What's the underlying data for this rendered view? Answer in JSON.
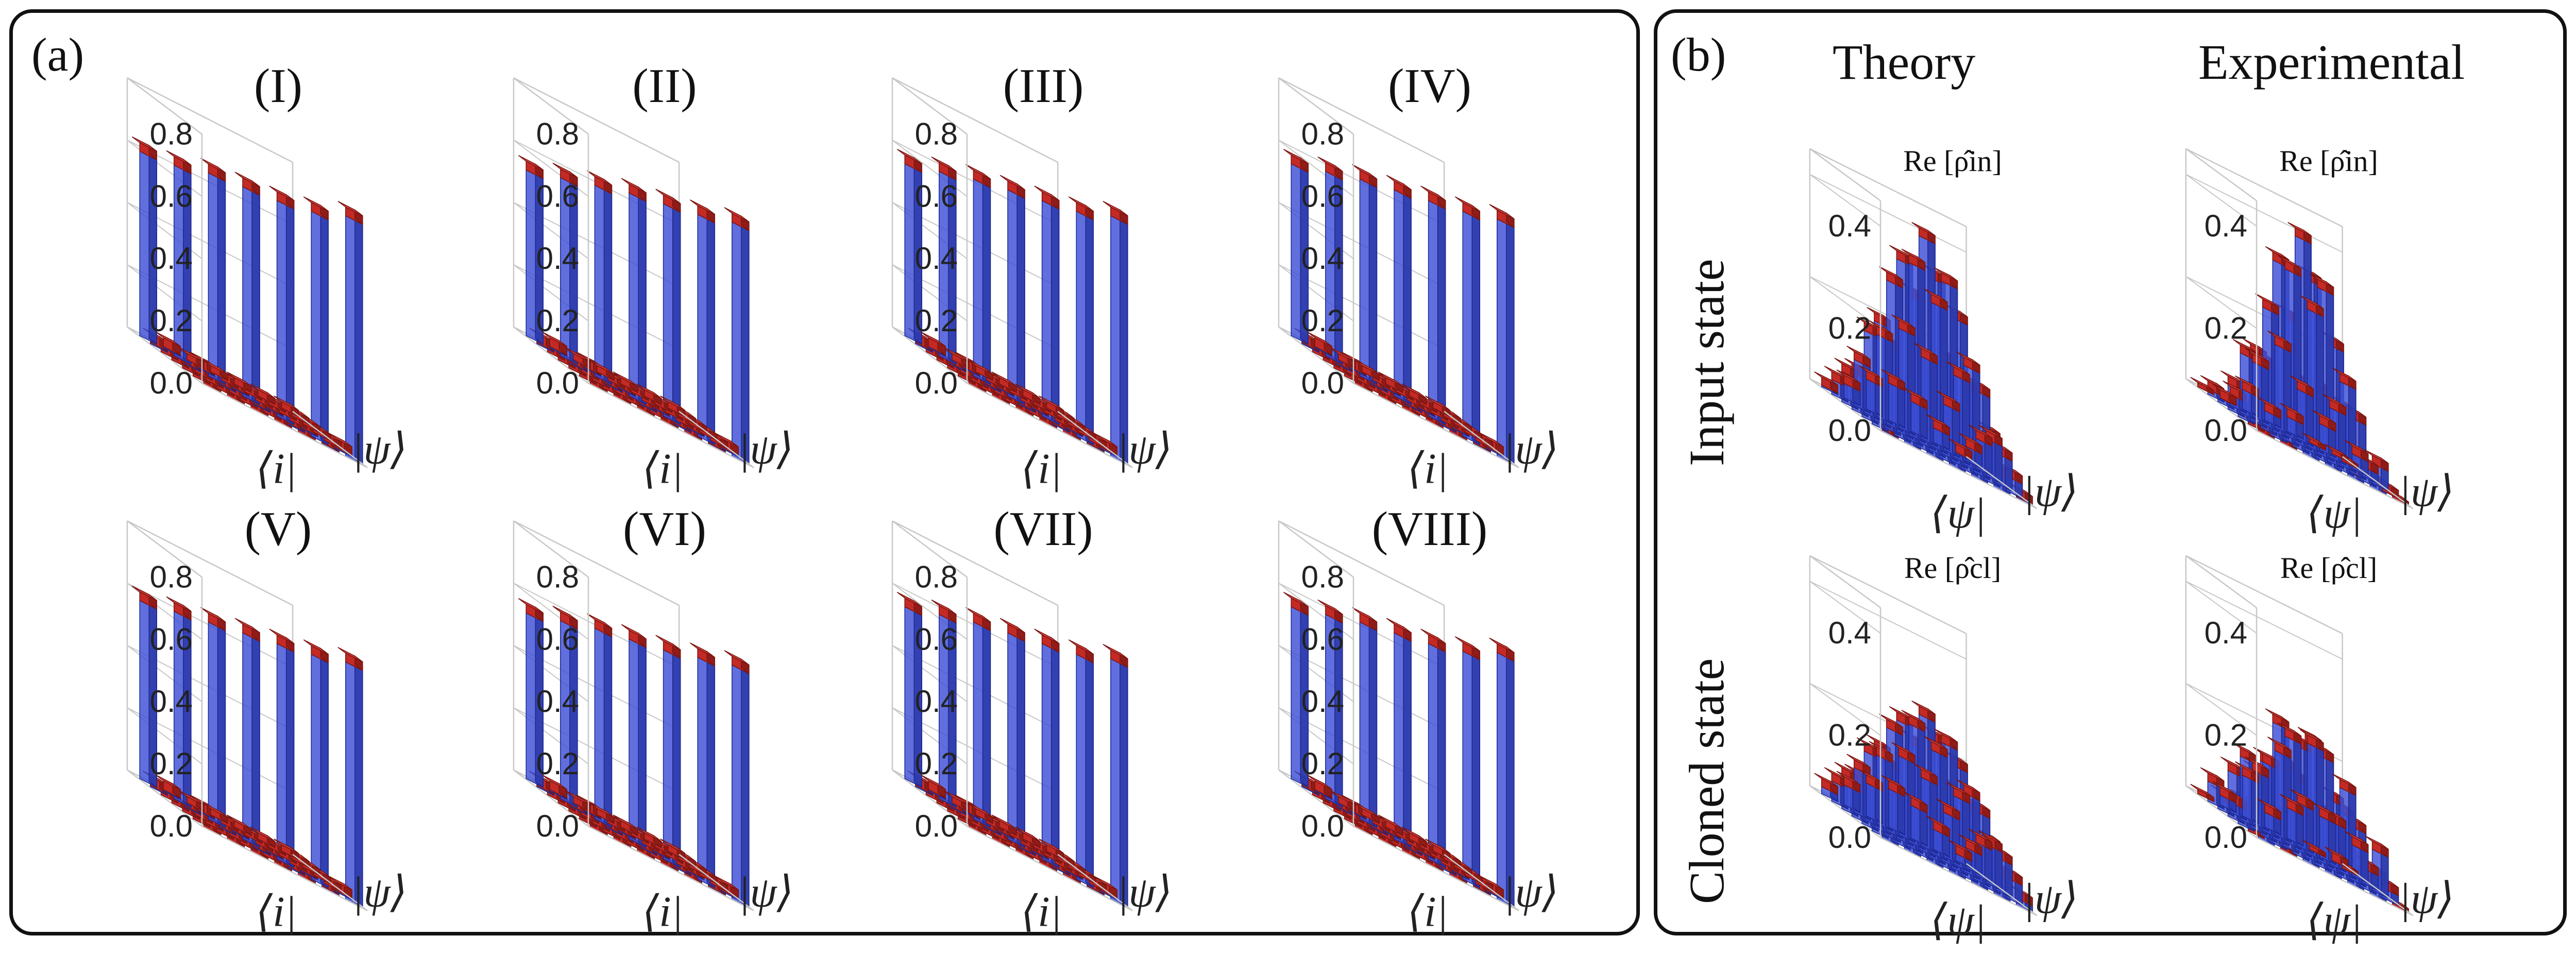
{
  "panel_a": {
    "label": "(a)",
    "plots": [
      {
        "title": "(I)"
      },
      {
        "title": "(II)"
      },
      {
        "title": "(III)"
      },
      {
        "title": "(IV)"
      },
      {
        "title": "(V)"
      },
      {
        "title": "(VI)"
      },
      {
        "title": "(VII)"
      },
      {
        "title": "(VIII)"
      }
    ],
    "x_label": "⟨i|",
    "y_label": "|ψ⟩",
    "z_ticks": [
      "0.0",
      "0.2",
      "0.4",
      "0.6",
      "0.8"
    ]
  },
  "panel_b": {
    "label": "(b)",
    "col_theory": "Theory",
    "col_experimental": "Experimental",
    "row_input": "Input state",
    "row_cloned": "Cloned state",
    "sub_in": "Re [ρ̂in]",
    "sub_cl": "Re [ρ̂cl]",
    "x_label": "⟨ψ|",
    "y_label": "|ψ⟩",
    "z_ticks_input": [
      "0.0",
      "0.2",
      "0.4"
    ],
    "z_ticks_cloned": [
      "0.0",
      "0.2",
      "0.4"
    ]
  },
  "colors": {
    "bar_blue": "#3d4fd6",
    "bar_red": "#c42a25",
    "frame": "#111111",
    "grid": "#c8c8c8"
  },
  "chart_data": [
    {
      "type": "bar3d",
      "panel": "a",
      "title": "(I)",
      "grid_size": 7,
      "diagonal": [
        0.62,
        0.64,
        0.68,
        0.7,
        0.72,
        0.75,
        0.8
      ],
      "offdiag": 0.02,
      "zlim": [
        0,
        0.8
      ]
    },
    {
      "type": "bar3d",
      "panel": "a",
      "title": "(II)",
      "grid_size": 7,
      "diagonal": [
        0.56,
        0.6,
        0.64,
        0.68,
        0.71,
        0.74,
        0.78
      ],
      "offdiag": 0.02,
      "zlim": [
        0,
        0.8
      ]
    },
    {
      "type": "bar3d",
      "panel": "a",
      "title": "(III)",
      "grid_size": 7,
      "diagonal": [
        0.58,
        0.62,
        0.66,
        0.69,
        0.72,
        0.75,
        0.8
      ],
      "offdiag": 0.02,
      "zlim": [
        0,
        0.8
      ]
    },
    {
      "type": "bar3d",
      "panel": "a",
      "title": "(IV)",
      "grid_size": 7,
      "diagonal": [
        0.58,
        0.62,
        0.66,
        0.69,
        0.72,
        0.75,
        0.79
      ],
      "offdiag": 0.02,
      "zlim": [
        0,
        0.8
      ]
    },
    {
      "type": "bar3d",
      "panel": "a",
      "title": "(V)",
      "grid_size": 7,
      "diagonal": [
        0.6,
        0.63,
        0.66,
        0.69,
        0.72,
        0.75,
        0.79
      ],
      "offdiag": 0.02,
      "zlim": [
        0,
        0.8
      ]
    },
    {
      "type": "bar3d",
      "panel": "a",
      "title": "(VI)",
      "grid_size": 7,
      "diagonal": [
        0.56,
        0.6,
        0.64,
        0.67,
        0.7,
        0.74,
        0.78
      ],
      "offdiag": 0.02,
      "zlim": [
        0,
        0.8
      ]
    },
    {
      "type": "bar3d",
      "panel": "a",
      "title": "(VII)",
      "grid_size": 7,
      "diagonal": [
        0.58,
        0.62,
        0.66,
        0.69,
        0.72,
        0.75,
        0.8
      ],
      "offdiag": 0.02,
      "zlim": [
        0,
        0.8
      ]
    },
    {
      "type": "bar3d",
      "panel": "a",
      "title": "(VIII)",
      "grid_size": 7,
      "diagonal": [
        0.58,
        0.62,
        0.66,
        0.69,
        0.72,
        0.76,
        0.82
      ],
      "offdiag": 0.02,
      "zlim": [
        0,
        0.8
      ]
    },
    {
      "type": "bar3d",
      "panel": "b",
      "title": "Theory · Input state · Re [ρ̂in]",
      "grid_size": 7,
      "peak": 0.42,
      "width": 1.7,
      "noise": 0,
      "zlim": [
        0,
        0.45
      ]
    },
    {
      "type": "bar3d",
      "panel": "b",
      "title": "Experimental · Input state · Re [ρ̂in]",
      "grid_size": 7,
      "peak": 0.44,
      "width": 1.4,
      "noise": 0.02,
      "zlim": [
        0,
        0.45
      ]
    },
    {
      "type": "bar3d",
      "panel": "b",
      "title": "Theory · Cloned state · Re [ρ̂cl]",
      "grid_size": 7,
      "peak": 0.28,
      "width": 2.0,
      "noise": 0,
      "zlim": [
        0,
        0.45
      ]
    },
    {
      "type": "bar3d",
      "panel": "b",
      "title": "Experimental · Cloned state · Re [ρ̂cl]",
      "grid_size": 7,
      "peak": 0.26,
      "width": 1.8,
      "noise": 0.04,
      "zlim": [
        0,
        0.45
      ]
    }
  ]
}
